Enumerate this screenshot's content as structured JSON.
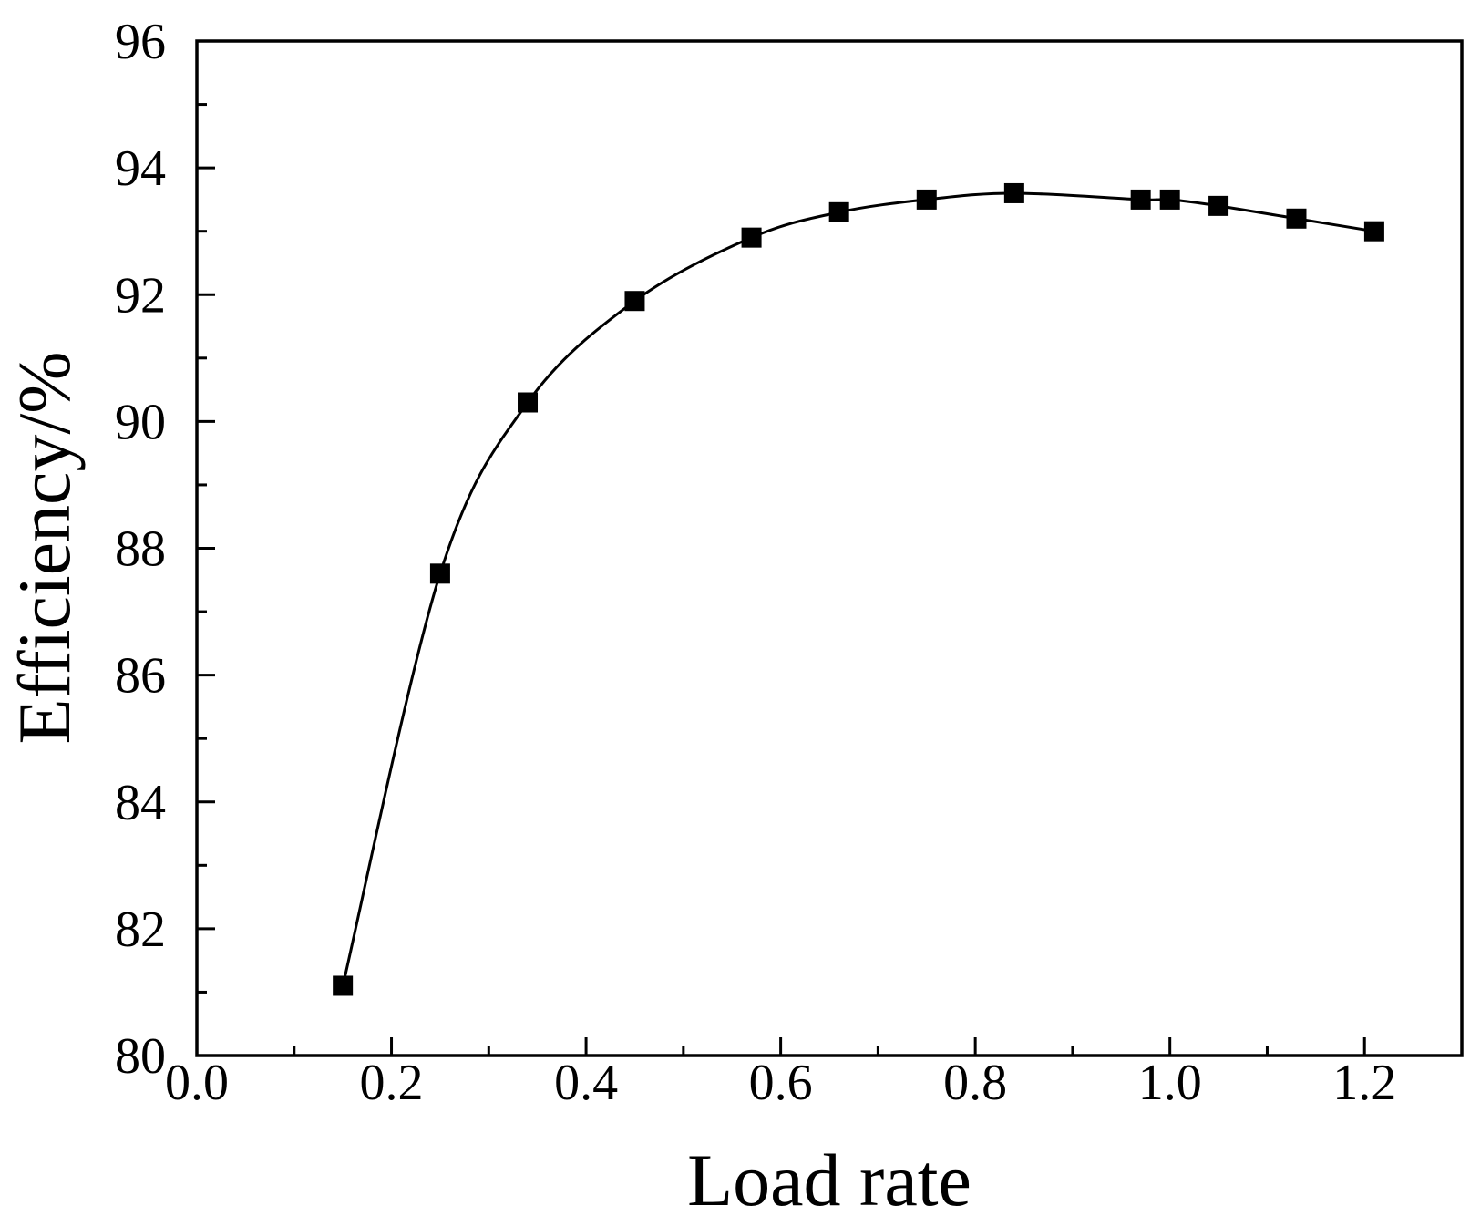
{
  "chart_data": {
    "type": "line",
    "xlabel": "Load rate",
    "ylabel": "Efficiency/%",
    "xlim": [
      0.0,
      1.3
    ],
    "ylim": [
      80,
      96
    ],
    "x_ticks": [
      "0.0",
      "0.2",
      "0.4",
      "0.6",
      "0.8",
      "1.0",
      "1.2"
    ],
    "x_tick_values": [
      0.0,
      0.2,
      0.4,
      0.6,
      0.8,
      1.0,
      1.2
    ],
    "y_ticks": [
      "80",
      "82",
      "84",
      "86",
      "88",
      "90",
      "92",
      "94",
      "96"
    ],
    "y_tick_values": [
      80,
      82,
      84,
      86,
      88,
      90,
      92,
      94,
      96
    ],
    "grid": false,
    "marker": "square",
    "series": [
      {
        "x": [
          0.15,
          0.25,
          0.34,
          0.45,
          0.57,
          0.66,
          0.75,
          0.84,
          0.97,
          1.0,
          1.05,
          1.13,
          1.21
        ],
        "y": [
          81.1,
          87.6,
          90.3,
          91.9,
          92.9,
          93.3,
          93.5,
          93.6,
          93.5,
          93.5,
          93.4,
          93.2,
          93.0
        ]
      }
    ],
    "colors": {
      "line": "#000000",
      "marker": "#000000",
      "axis": "#000000",
      "axis_title": "#000000"
    }
  }
}
